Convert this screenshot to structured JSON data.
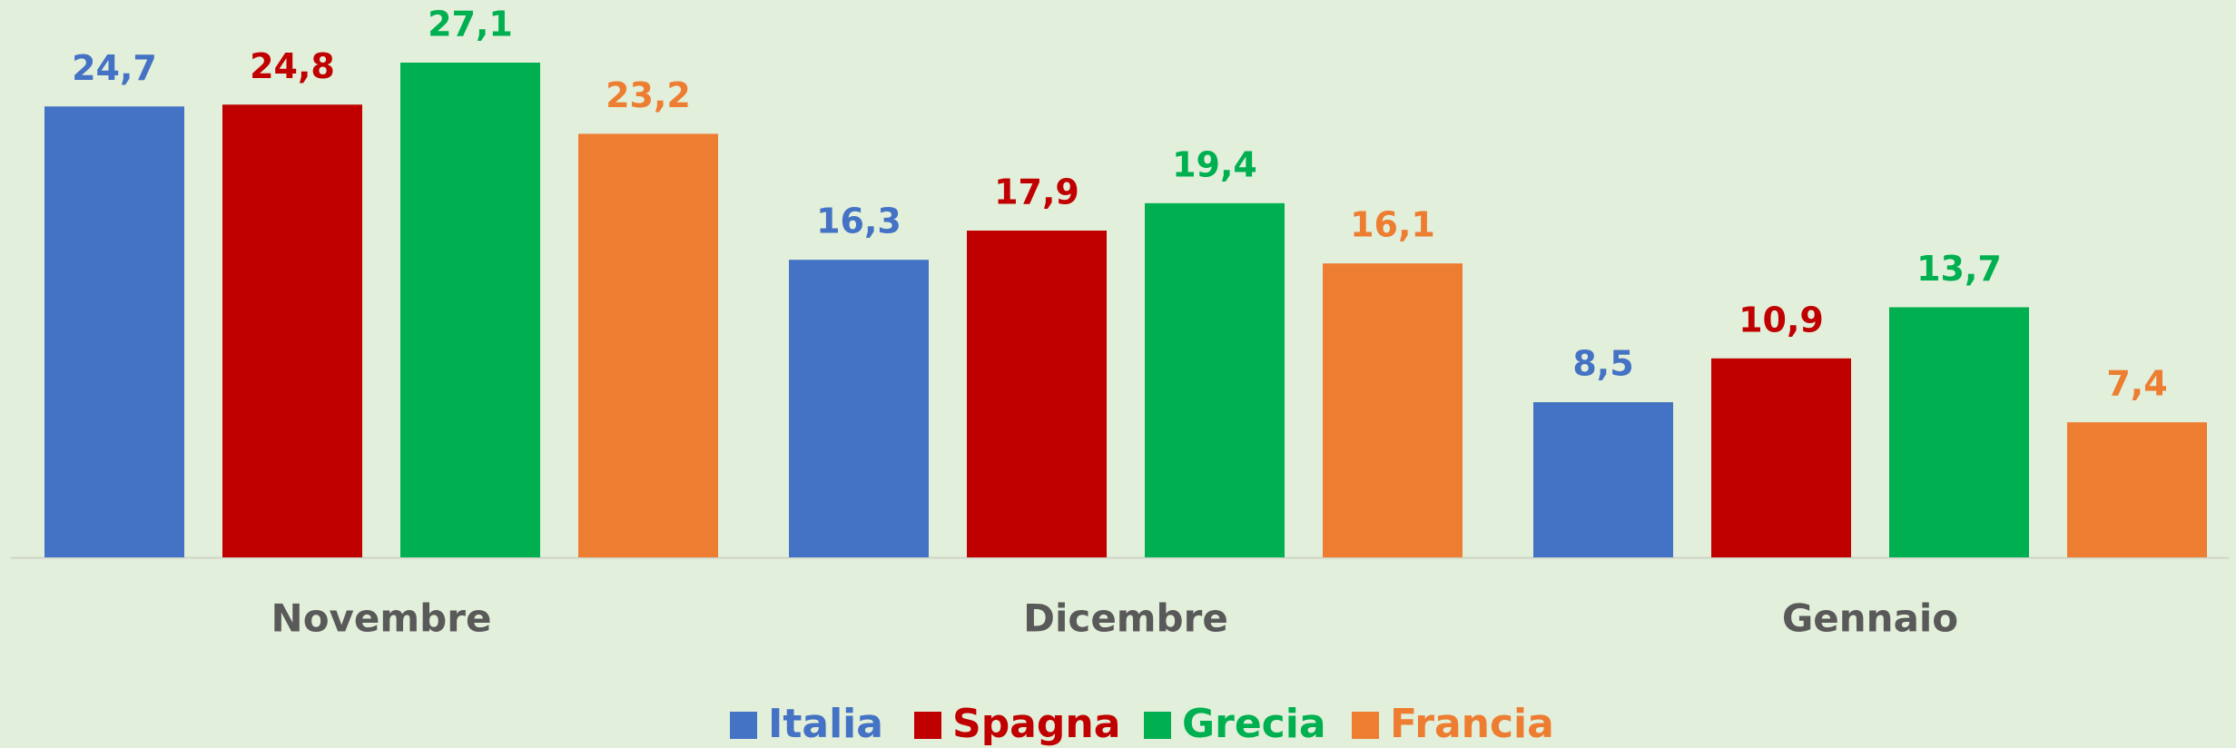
{
  "chart_data": {
    "type": "bar",
    "categories": [
      "Novembre",
      "Dicembre",
      "Gennaio"
    ],
    "series": [
      {
        "name": "Italia",
        "color": "#4472c4",
        "values": [
          24.7,
          16.3,
          8.5
        ],
        "value_labels": [
          "24,7",
          "16,3",
          "8,5"
        ]
      },
      {
        "name": "Spagna",
        "color": "#c00000",
        "values": [
          24.8,
          17.9,
          10.9
        ],
        "value_labels": [
          "24,8",
          "17,9",
          "10,9"
        ]
      },
      {
        "name": "Grecia",
        "color": "#00b050",
        "values": [
          27.1,
          19.4,
          13.7
        ],
        "value_labels": [
          "27,1",
          "19,4",
          "13,7"
        ]
      },
      {
        "name": "Francia",
        "color": "#ed7d31",
        "values": [
          23.2,
          16.1,
          7.4
        ],
        "value_labels": [
          "23,2",
          "16,1",
          "7,4"
        ]
      }
    ],
    "legend": "bottom"
  }
}
